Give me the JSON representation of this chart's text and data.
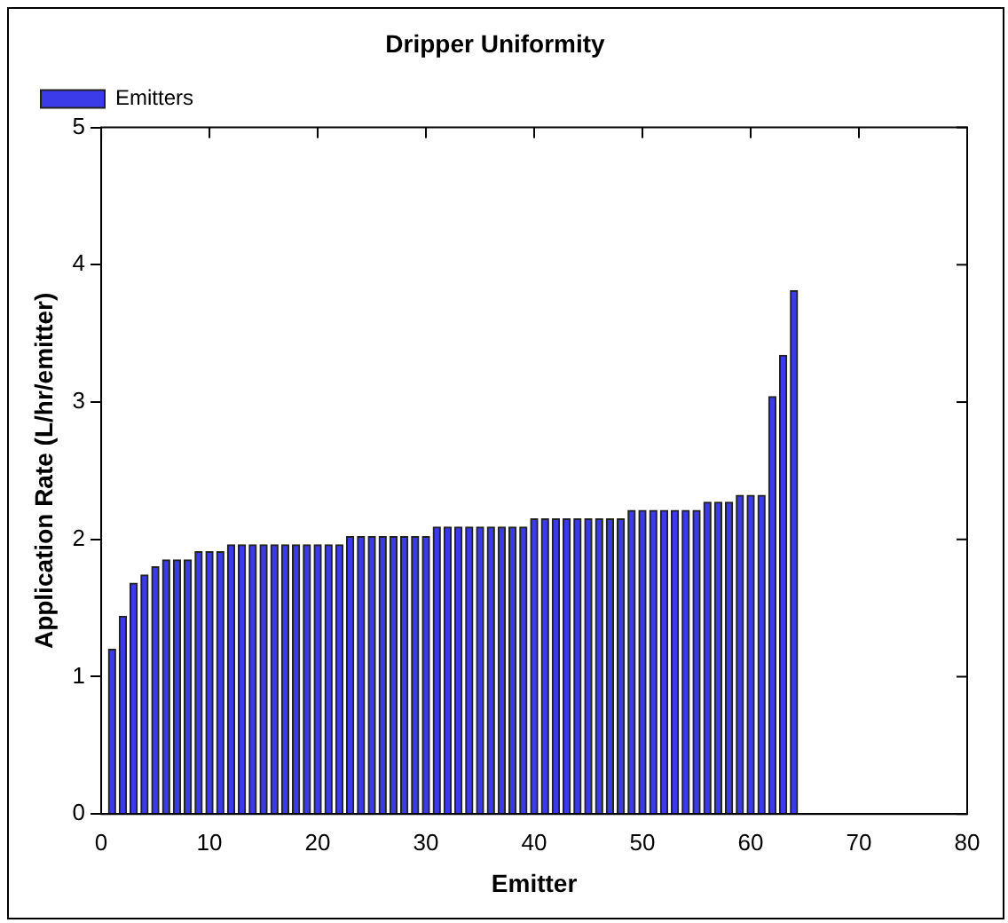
{
  "chart_data": {
    "type": "bar",
    "title": "Dripper Uniformity",
    "xlabel": "Emitter",
    "ylabel": "Application Rate (L/hr/emitter)",
    "x": [
      1,
      2,
      3,
      4,
      5,
      6,
      7,
      8,
      9,
      10,
      11,
      12,
      13,
      14,
      15,
      16,
      17,
      18,
      19,
      20,
      21,
      22,
      23,
      24,
      25,
      26,
      27,
      28,
      29,
      30,
      31,
      32,
      33,
      34,
      35,
      36,
      37,
      38,
      39,
      40,
      41,
      42,
      43,
      44,
      45,
      46,
      47,
      48,
      49,
      50,
      51,
      52,
      53,
      54,
      55,
      56,
      57,
      58,
      59,
      60,
      61,
      62,
      63,
      64
    ],
    "series": [
      {
        "name": "Emitters",
        "color": "#3b3bea",
        "values": [
          1.2,
          1.44,
          1.68,
          1.74,
          1.8,
          1.85,
          1.85,
          1.85,
          1.91,
          1.91,
          1.91,
          1.96,
          1.96,
          1.96,
          1.96,
          1.96,
          1.96,
          1.96,
          1.96,
          1.96,
          1.96,
          1.96,
          2.02,
          2.02,
          2.02,
          2.02,
          2.02,
          2.02,
          2.02,
          2.02,
          2.09,
          2.09,
          2.09,
          2.09,
          2.09,
          2.09,
          2.09,
          2.09,
          2.09,
          2.15,
          2.15,
          2.15,
          2.15,
          2.15,
          2.15,
          2.15,
          2.15,
          2.15,
          2.21,
          2.21,
          2.21,
          2.21,
          2.21,
          2.21,
          2.21,
          2.27,
          2.27,
          2.27,
          2.32,
          2.32,
          2.32,
          3.04,
          3.34,
          3.81
        ]
      }
    ],
    "xlim": [
      0,
      80
    ],
    "xticks": [
      0,
      10,
      20,
      30,
      40,
      50,
      60,
      70,
      80
    ],
    "ylim": [
      0,
      5
    ],
    "yticks": [
      0,
      1,
      2,
      3,
      4,
      5
    ],
    "grid": false,
    "legend": "top left"
  }
}
